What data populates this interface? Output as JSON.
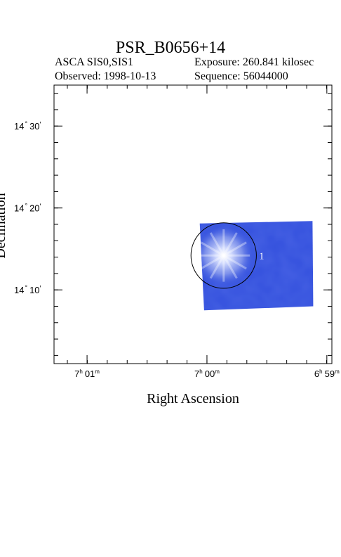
{
  "header": {
    "title": "PSR_B0656+14",
    "instrument": "ASCA SIS0,SIS1",
    "exposure": "Exposure: 260.841 kilosec",
    "observed": "Observed: 1998-10-13",
    "sequence": "Sequence: 56044000"
  },
  "chart_data": {
    "type": "image",
    "xlabel": "Right Ascension",
    "ylabel": "Declination",
    "x_ticks": [
      {
        "value_h": 7.0167,
        "label_h": "7",
        "label_m": "01",
        "unit_h": "h",
        "unit_m": "m"
      },
      {
        "value_h": 7.0,
        "label_h": "7",
        "label_m": "00",
        "unit_h": "h",
        "unit_m": "m"
      },
      {
        "value_h": 6.9833,
        "label_h": "6",
        "label_m": "59",
        "unit_h": "h",
        "unit_m": "m"
      }
    ],
    "y_ticks": [
      {
        "value_deg": 14.5,
        "label_d": "14",
        "label_m": "30"
      },
      {
        "value_deg": 14.3333,
        "label_d": "14",
        "label_m": "20"
      },
      {
        "value_deg": 14.1667,
        "label_d": "14",
        "label_m": "10"
      }
    ],
    "ra_range_h": [
      7.0213,
      6.9826
    ],
    "dec_range_deg": [
      14.0167,
      14.5833
    ],
    "image_field": {
      "color": "#3350dd",
      "corners_ra_h": [
        7.001,
        6.9853,
        6.9852,
        7.0004
      ],
      "corners_dec_deg": [
        14.3017,
        14.3067,
        14.1333,
        14.125
      ]
    },
    "source": {
      "label": "1",
      "ra_h": 6.99767,
      "dec_deg": 14.2366,
      "radius_deg": 0.0667,
      "color": "#ffffff"
    },
    "grid": false
  }
}
